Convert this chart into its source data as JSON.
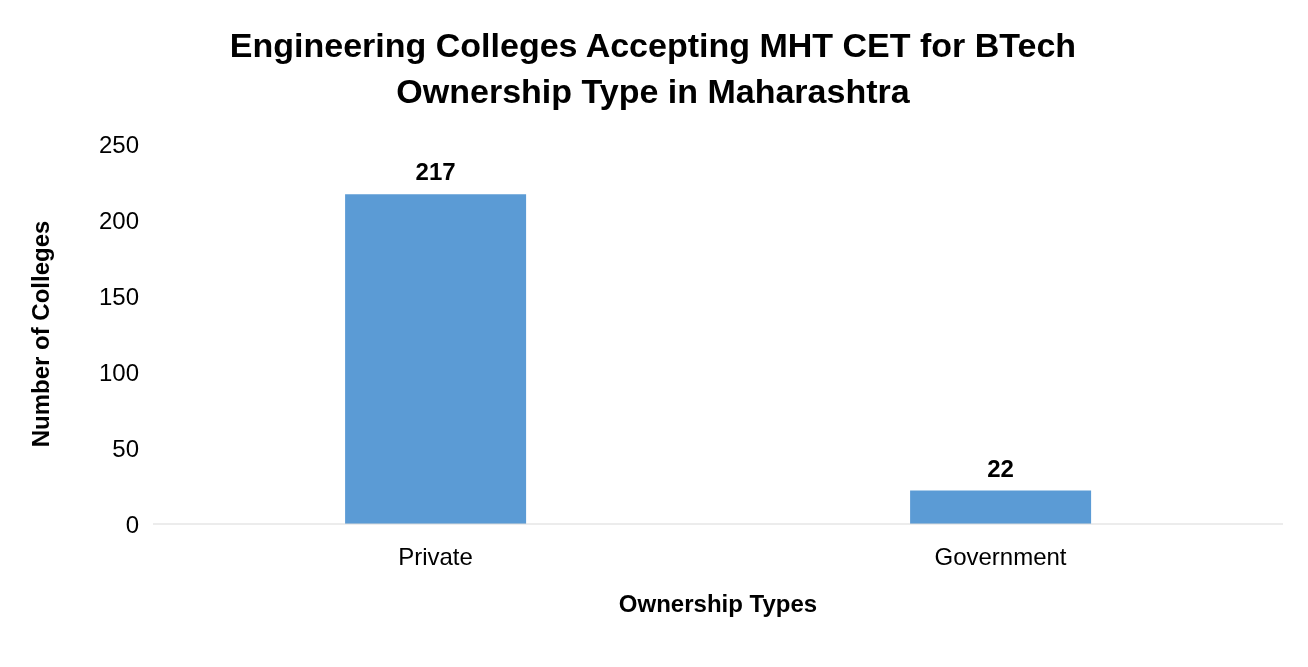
{
  "chart_data": {
    "type": "bar",
    "title": "Engineering Colleges Accepting MHT CET for BTech\nOwnership Type in Maharashtra",
    "xlabel": "Ownership Types",
    "ylabel": "Number of Colleges",
    "categories": [
      "Private",
      "Government"
    ],
    "values": [
      217,
      22
    ],
    "color": "#5b9bd5",
    "ylim": [
      0,
      250
    ],
    "yticks": [
      0,
      50,
      100,
      150,
      200,
      250
    ],
    "grid": false,
    "data_labels": true
  }
}
